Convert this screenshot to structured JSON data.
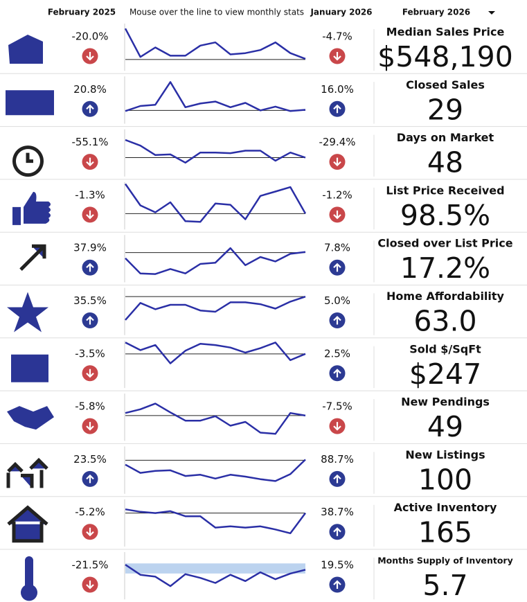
{
  "header": {
    "col1": "February 2025",
    "hint": "Mouse over the line to view monthly stats",
    "col2": "January 2026",
    "period": "February 2026"
  },
  "sparkline_range": [
    0,
    75
  ],
  "rows": [
    {
      "label": "Median Sales Price",
      "value": "$548,190",
      "change_prev_year": "-20.0%",
      "change_prev_month": "-4.7%",
      "sparkline": {
        "values": [
          66,
          21,
          36,
          23,
          23,
          39,
          44,
          25,
          27,
          32,
          44,
          27,
          18
        ],
        "baseline": 17
      }
    },
    {
      "label": "Closed Sales",
      "value": "29",
      "change_prev_year": "20.8%",
      "change_prev_month": "16.0%",
      "sparkline": {
        "values": [
          19,
          27,
          29,
          65,
          25,
          31,
          34,
          25,
          32,
          20,
          26,
          19,
          21
        ],
        "baseline": 20
      }
    },
    {
      "label": "Days on Market",
      "value": "48",
      "change_prev_year": "-55.1%",
      "change_prev_month": "-29.4%",
      "sparkline": {
        "values": [
          57,
          48,
          33,
          34,
          21,
          37,
          37,
          36,
          40,
          40,
          24,
          37,
          29
        ],
        "baseline": 29
      }
    },
    {
      "label": "List Price Received",
      "value": "98.5%",
      "change_prev_year": "-1.3%",
      "change_prev_month": "-1.2%",
      "sparkline": {
        "values": [
          71,
          37,
          26,
          42,
          12,
          11,
          40,
          38,
          15,
          52,
          59,
          66,
          24
        ],
        "baseline": 24
      }
    },
    {
      "label": "Closed over List Price",
      "value": "17.2%",
      "change_prev_year": "37.9%",
      "change_prev_month": "7.8%",
      "sparkline": {
        "values": [
          37,
          13,
          12,
          20,
          13,
          28,
          30,
          53,
          26,
          39,
          32,
          44,
          47
        ],
        "baseline": 46
      }
    },
    {
      "label": "Home Affordability",
      "value": "63.0",
      "change_prev_year": "35.5%",
      "change_prev_month": "5.0%",
      "sparkline": {
        "values": [
          23,
          50,
          40,
          47,
          47,
          38,
          36,
          51,
          51,
          48,
          41,
          52,
          60
        ],
        "baseline": 60
      }
    },
    {
      "label": "Sold $/SqFt",
      "value": "$247",
      "change_prev_year": "-3.5%",
      "change_prev_month": "2.5%",
      "sparkline": {
        "values": [
          71,
          59,
          67,
          38,
          58,
          69,
          67,
          63,
          55,
          62,
          71,
          43,
          53
        ],
        "baseline": 53
      }
    },
    {
      "label": "New Pendings",
      "value": "49",
      "change_prev_year": "-5.8%",
      "change_prev_month": "-7.5%",
      "sparkline": {
        "values": [
          43,
          49,
          58,
          44,
          31,
          31,
          38,
          23,
          29,
          12,
          10,
          43,
          39
        ],
        "baseline": 39
      }
    },
    {
      "label": "New Listings",
      "value": "100",
      "change_prev_year": "23.5%",
      "change_prev_month": "88.7%",
      "sparkline": {
        "values": [
          45,
          32,
          35,
          36,
          27,
          29,
          23,
          29,
          26,
          22,
          19,
          30,
          53
        ],
        "baseline": 52
      }
    },
    {
      "label": "Active Inventory",
      "value": "165",
      "change_prev_year": "-5.2%",
      "change_prev_month": "38.7%",
      "sparkline": {
        "values": [
          58,
          54,
          52,
          55,
          47,
          47,
          29,
          31,
          29,
          31,
          26,
          20,
          52
        ],
        "baseline": 52
      }
    },
    {
      "label": "Months Supply of Inventory",
      "value": "5.7",
      "change_prev_year": "-21.5%",
      "change_prev_month": "19.5%",
      "sparkline": {
        "values": [
          54,
          38,
          35,
          20,
          39,
          33,
          25,
          38,
          28,
          42,
          31,
          40,
          46
        ],
        "band": [
          40,
          56
        ]
      }
    }
  ]
}
